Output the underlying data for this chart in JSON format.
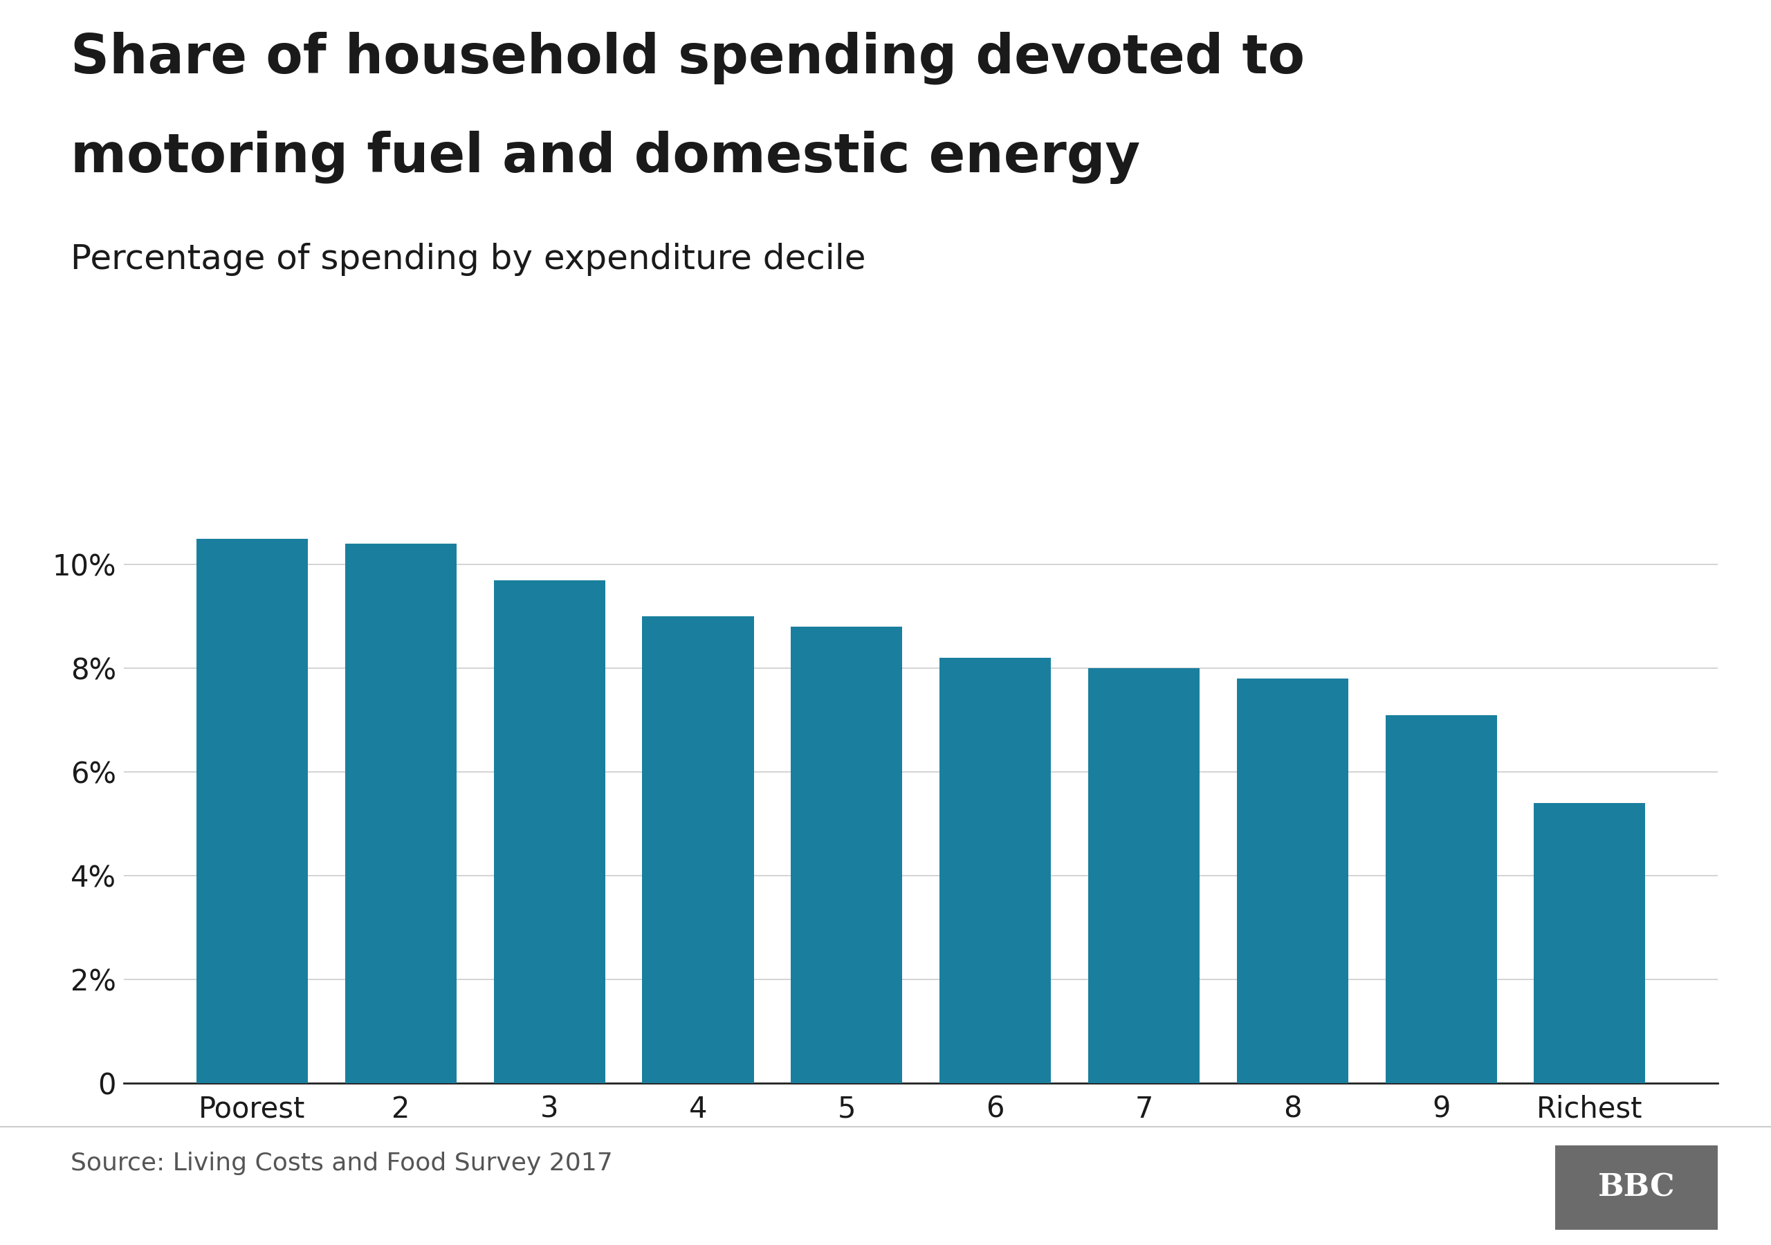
{
  "title_line1": "Share of household spending devoted to",
  "title_line2": "motoring fuel and domestic energy",
  "subtitle": "Percentage of spending by expenditure decile",
  "categories": [
    "Poorest",
    "2",
    "3",
    "4",
    "5",
    "6",
    "7",
    "8",
    "9",
    "Richest"
  ],
  "values": [
    10.5,
    10.4,
    9.7,
    9.0,
    8.8,
    8.2,
    8.0,
    7.8,
    7.1,
    5.4
  ],
  "bar_color": "#1a7f9e",
  "background_color": "#ffffff",
  "ylim": [
    0,
    12
  ],
  "yticks": [
    0,
    2,
    4,
    6,
    8,
    10
  ],
  "title_fontsize": 56,
  "subtitle_fontsize": 36,
  "tick_fontsize": 30,
  "source_text": "Source: Living Costs and Food Survey 2017",
  "source_fontsize": 26,
  "grid_color": "#cccccc",
  "axis_color": "#222222",
  "text_color": "#1a1a1a"
}
